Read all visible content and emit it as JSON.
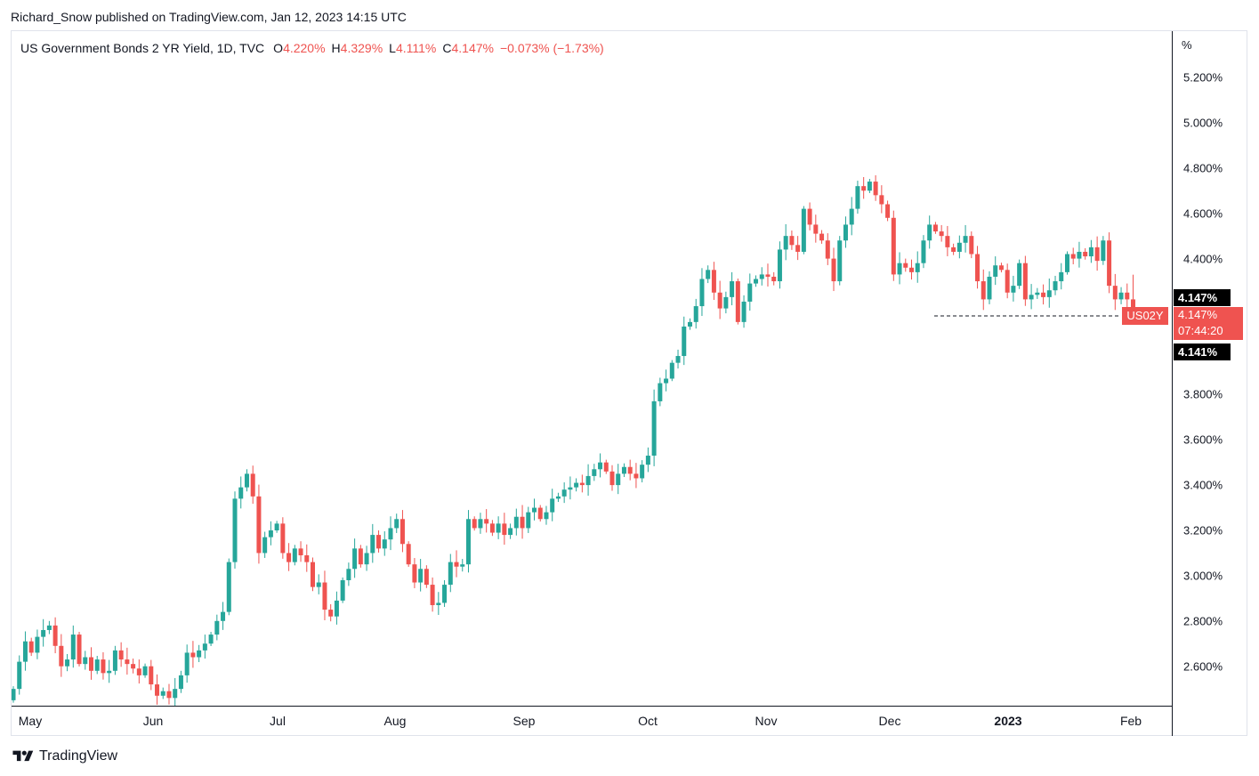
{
  "header": {
    "published": "Richard_Snow published on TradingView.com, Jan 12, 2023 14:15 UTC"
  },
  "legend": {
    "symbol": "US Government Bonds 2 YR Yield, 1D, TVC",
    "open_label": "O",
    "open": "4.220%",
    "high_label": "H",
    "high": "4.329%",
    "low_label": "L",
    "low": "4.111%",
    "close_label": "C",
    "close": "4.147%",
    "change": "−0.073% (−1.73%)"
  },
  "price_tags": {
    "high_marker": "4.147%",
    "symbol": "US02Y",
    "last": "4.147%",
    "countdown": "07:44:20",
    "low_marker": "4.141%"
  },
  "footer": {
    "brand": "TradingView"
  },
  "colors": {
    "up": "#26a69a",
    "down": "#ef5350",
    "text": "#131722",
    "grid_border": "#e0e3eb"
  },
  "chart_data": {
    "type": "candlestick",
    "title": "US Government Bonds 2 YR Yield, 1D, TVC",
    "unit_label": "%",
    "ylim": [
      2.42,
      5.37
    ],
    "y_ticks": [
      "5.200%",
      "5.000%",
      "4.800%",
      "4.600%",
      "4.400%",
      "3.800%",
      "3.600%",
      "3.400%",
      "3.200%",
      "3.000%",
      "2.800%",
      "2.600%"
    ],
    "x_ticks": [
      {
        "label": "May",
        "bold": false
      },
      {
        "label": "Jun",
        "bold": false
      },
      {
        "label": "Jul",
        "bold": false
      },
      {
        "label": "Aug",
        "bold": false
      },
      {
        "label": "Sep",
        "bold": false
      },
      {
        "label": "Oct",
        "bold": false
      },
      {
        "label": "Nov",
        "bold": false
      },
      {
        "label": "Dec",
        "bold": false
      },
      {
        "label": "2023",
        "bold": true
      },
      {
        "label": "Feb",
        "bold": false
      }
    ],
    "first_session": "2022-04-29",
    "weekdays_only": true,
    "closes": [
      2.5,
      2.62,
      2.71,
      2.66,
      2.73,
      2.76,
      2.78,
      2.69,
      2.6,
      2.63,
      2.74,
      2.61,
      2.64,
      2.58,
      2.63,
      2.57,
      2.58,
      2.67,
      2.63,
      2.61,
      2.59,
      2.56,
      2.6,
      2.52,
      2.47,
      2.49,
      2.46,
      2.5,
      2.56,
      2.66,
      2.64,
      2.67,
      2.7,
      2.74,
      2.8,
      2.84,
      3.06,
      3.34,
      3.39,
      3.45,
      3.35,
      3.1,
      3.17,
      3.2,
      3.23,
      3.1,
      3.06,
      3.12,
      3.09,
      3.06,
      2.95,
      2.97,
      2.85,
      2.82,
      2.89,
      2.98,
      3.03,
      3.12,
      3.05,
      3.1,
      3.18,
      3.12,
      3.16,
      3.21,
      3.25,
      3.14,
      3.05,
      2.97,
      3.03,
      2.96,
      2.87,
      2.88,
      2.96,
      3.06,
      3.04,
      3.05,
      3.25,
      3.21,
      3.25,
      3.23,
      3.19,
      3.23,
      3.18,
      3.21,
      3.26,
      3.21,
      3.28,
      3.3,
      3.25,
      3.28,
      3.34,
      3.35,
      3.38,
      3.39,
      3.41,
      3.4,
      3.44,
      3.47,
      3.5,
      3.46,
      3.4,
      3.45,
      3.48,
      3.45,
      3.43,
      3.49,
      3.53,
      3.77,
      3.85,
      3.87,
      3.94,
      3.97,
      4.1,
      4.12,
      4.19,
      4.31,
      4.35,
      4.25,
      4.18,
      4.23,
      4.3,
      4.12,
      4.21,
      4.29,
      4.31,
      4.33,
      4.32,
      4.3,
      4.44,
      4.5,
      4.46,
      4.43,
      4.62,
      4.55,
      4.51,
      4.48,
      4.4,
      4.3,
      4.48,
      4.55,
      4.62,
      4.72,
      4.7,
      4.74,
      4.68,
      4.64,
      4.58,
      4.33,
      4.38,
      4.36,
      4.34,
      4.38,
      4.48,
      4.55,
      4.52,
      4.5,
      4.45,
      4.43,
      4.47,
      4.5,
      4.42,
      4.3,
      4.22,
      4.32,
      4.37,
      4.35,
      4.25,
      4.28,
      4.38,
      4.22,
      4.24,
      4.25,
      4.23,
      4.26,
      4.3,
      4.34,
      4.42,
      4.4,
      4.43,
      4.41,
      4.45,
      4.39,
      4.48,
      4.28,
      4.22,
      4.25,
      4.22,
      4.15
    ]
  }
}
